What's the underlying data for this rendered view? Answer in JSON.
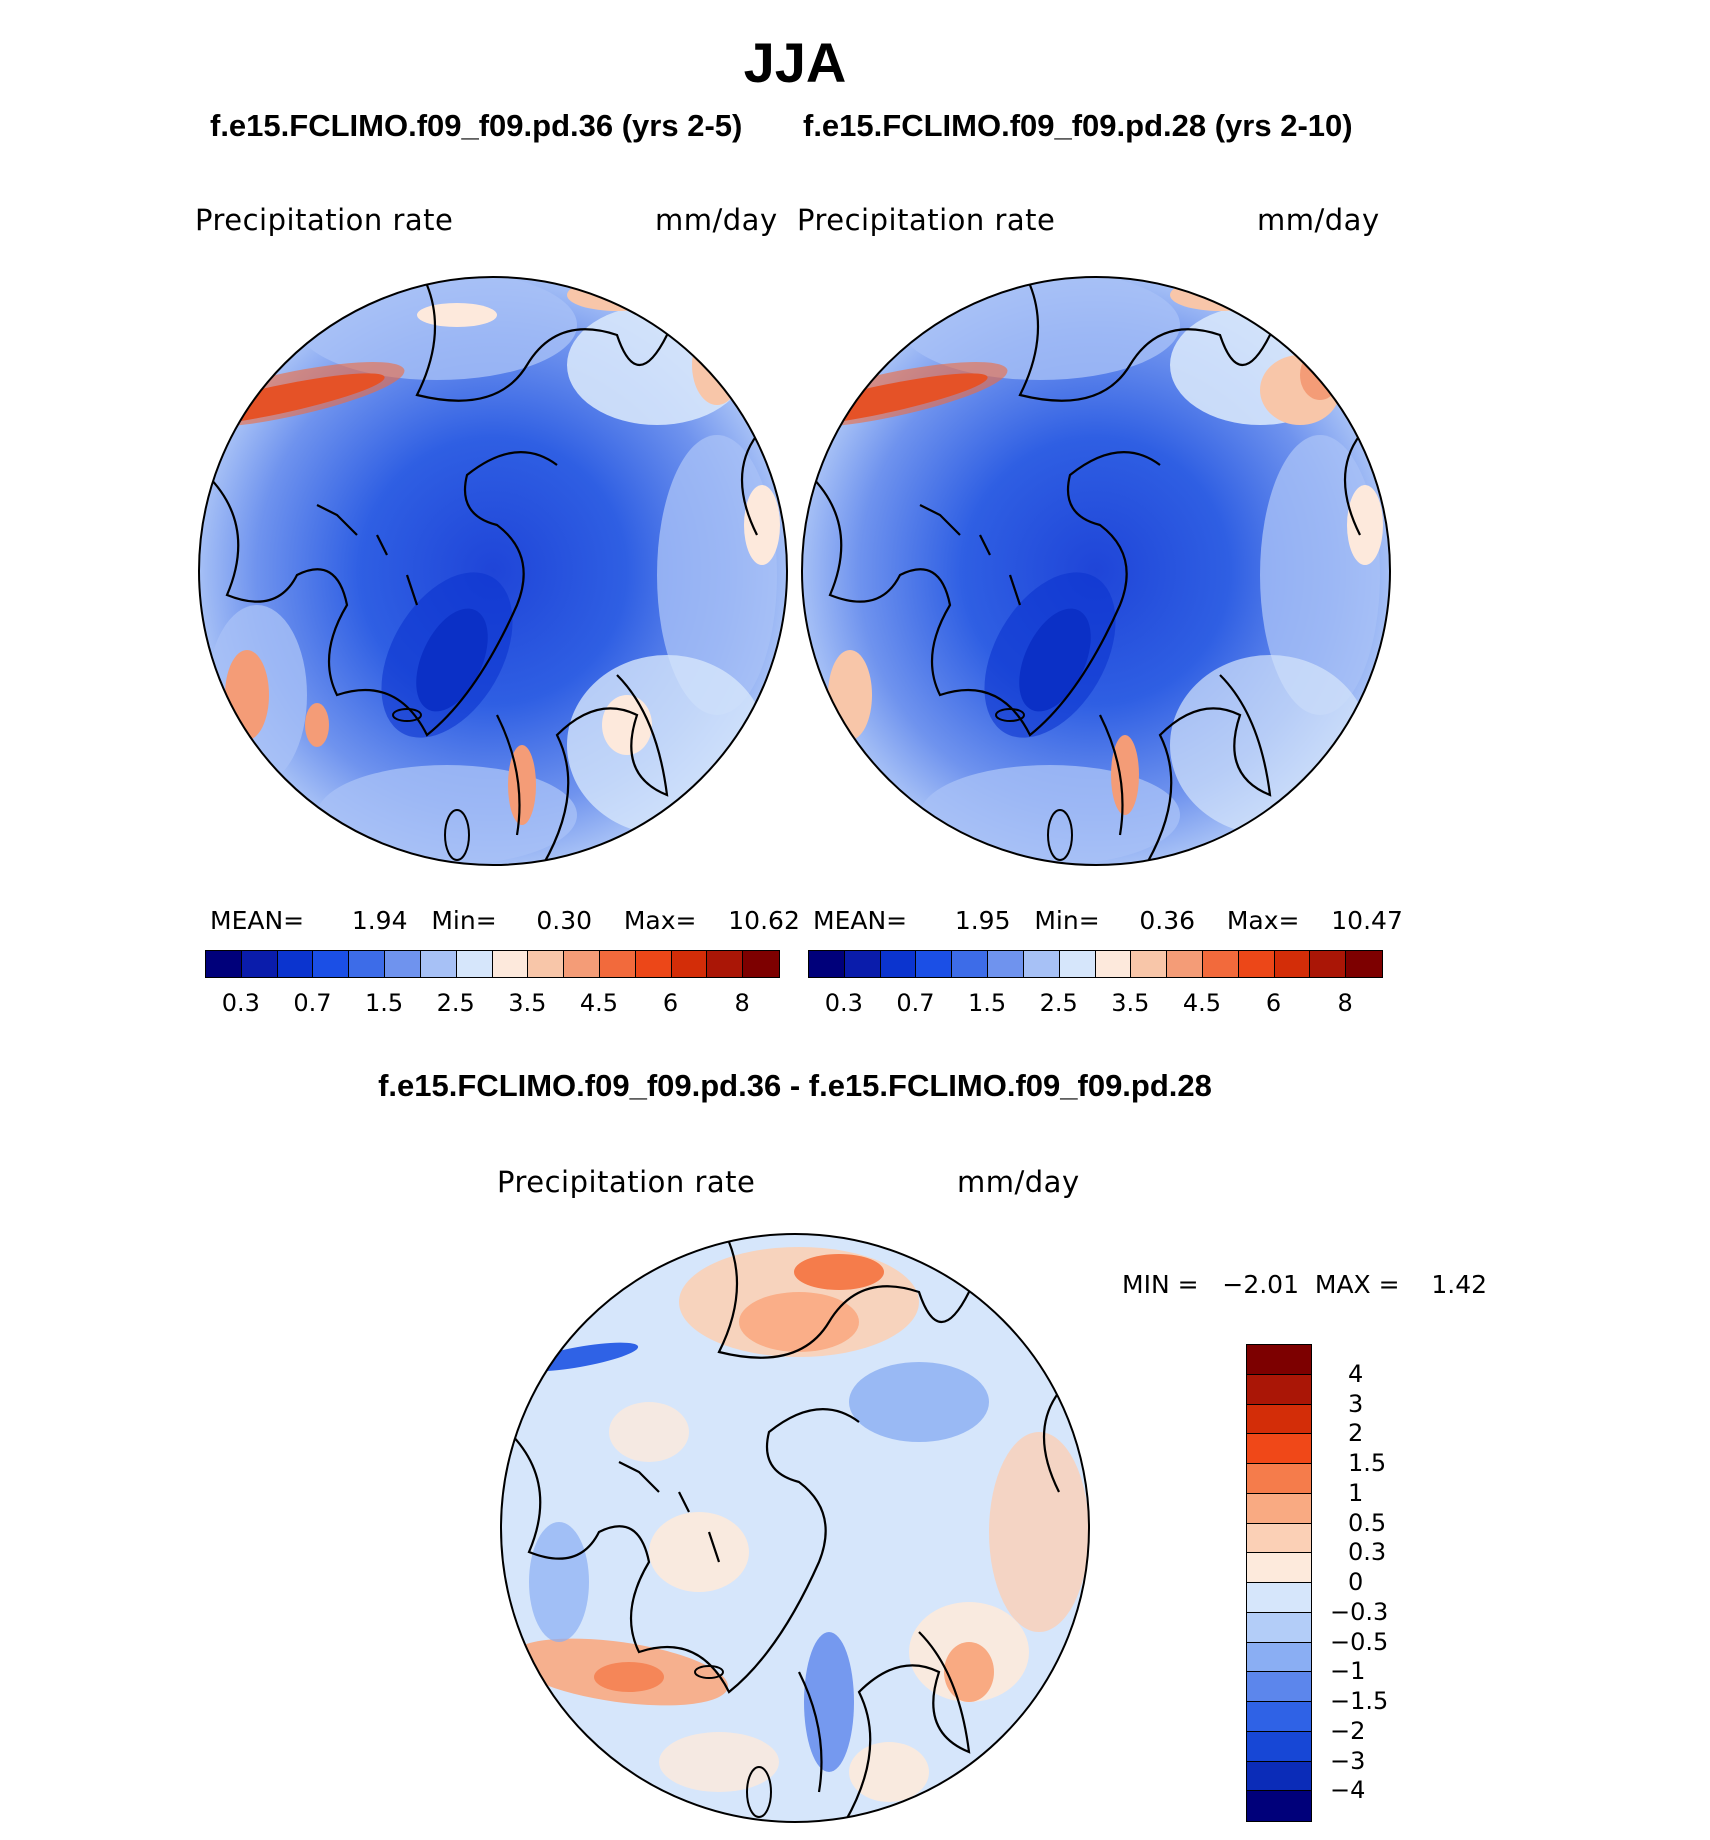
{
  "title": "JJA",
  "cases": {
    "left": "f.e15.FCLIMO.f09_f09.pd.36 (yrs 2-5)",
    "right": "f.e15.FCLIMO.f09_f09.pd.28 (yrs 2-10)"
  },
  "panels": [
    {
      "variable": "Precipitation  rate",
      "units": "mm/day",
      "mean_label": "MEAN=",
      "mean": "1.94",
      "min_label": "Min=",
      "min": "0.30",
      "max_label": "Max=",
      "max": "10.62"
    },
    {
      "variable": "Precipitation  rate",
      "units": "mm/day",
      "mean_label": "MEAN=",
      "mean": "1.95",
      "min_label": "Min=",
      "min": "0.36",
      "max_label": "Max=",
      "max": "10.47"
    }
  ],
  "colorbar": {
    "colors": [
      "#00007a",
      "#0a1cab",
      "#0b34cf",
      "#1b4fe6",
      "#3d6ce8",
      "#6f93ee",
      "#a7c1f6",
      "#d6e6fb",
      "#fde9dc",
      "#f8c6a9",
      "#f49c77",
      "#f26a3c",
      "#ec4718",
      "#d32d08",
      "#aa1606",
      "#7d0000"
    ],
    "ticks": [
      "0.3",
      "0.7",
      "1.5",
      "2.5",
      "3.5",
      "4.5",
      "6",
      "8"
    ]
  },
  "diff": {
    "title": "f.e15.FCLIMO.f09_f09.pd.36 - f.e15.FCLIMO.f09_f09.pd.28",
    "variable": "Precipitation  rate",
    "units": "mm/day",
    "stats": "MIN =   −2.01  MAX =    1.42",
    "colorbar": {
      "colors": [
        "#7d0000",
        "#aa1606",
        "#d32d08",
        "#f04818",
        "#f57c4b",
        "#f9aa82",
        "#fbd0b6",
        "#fdeadc",
        "#d6e6fb",
        "#b3cdf8",
        "#8aaef3",
        "#5c86ec",
        "#2f62e6",
        "#1747d6",
        "#0b2cb8",
        "#00007a"
      ],
      "ticks": [
        "4",
        "3",
        "2",
        "1.5",
        "1",
        "0.5",
        "0.3",
        "0",
        "−0.3",
        "−0.5",
        "−1",
        "−1.5",
        "−2",
        "−3",
        "−4"
      ]
    }
  },
  "map_style": {
    "background_blue": "#4f7de6",
    "diff_background": "#d6e6fb",
    "coastline": "#000000"
  }
}
